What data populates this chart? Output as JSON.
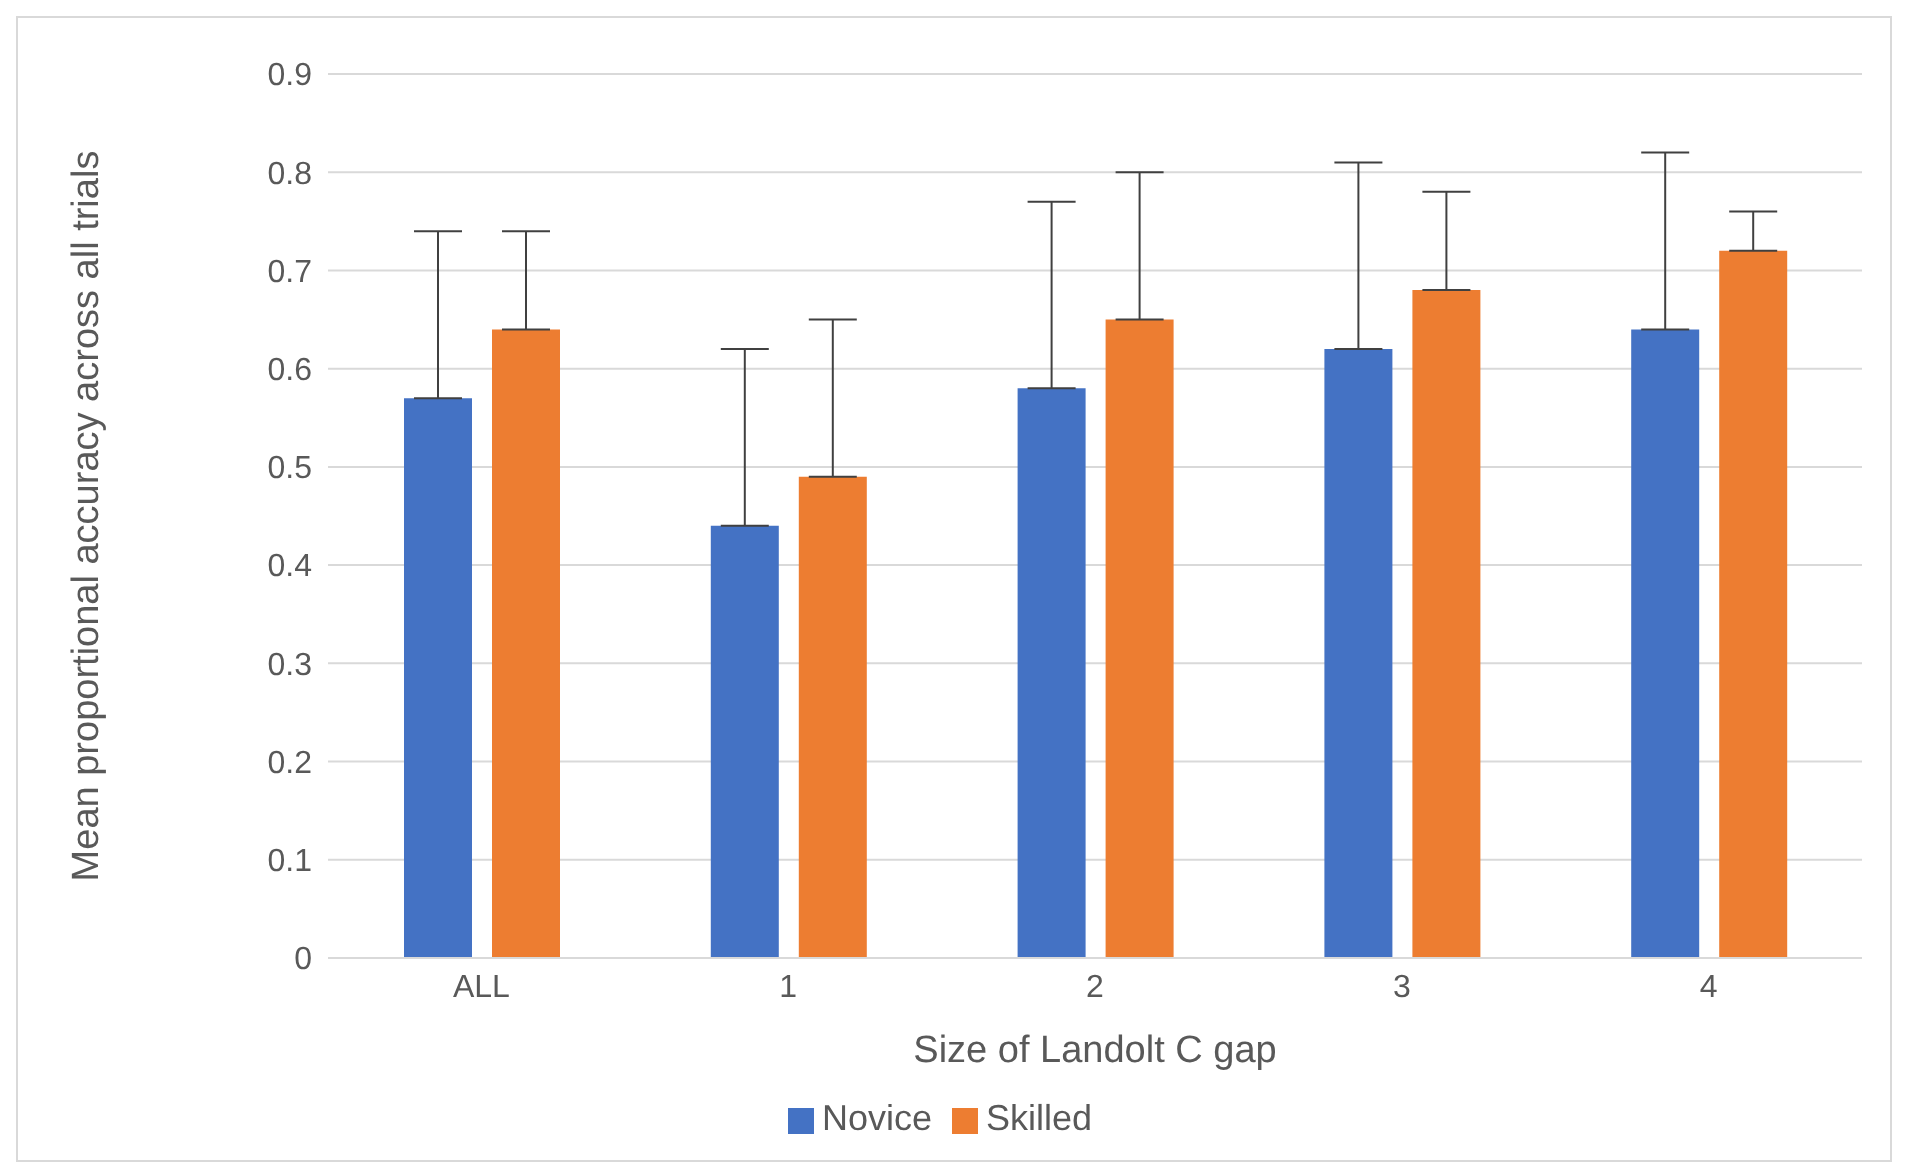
{
  "chart_data": {
    "type": "bar",
    "xlabel": "Size of Landolt C gap",
    "ylabel": "Mean proportional accuracy across all trials",
    "categories": [
      "ALL",
      "1",
      "2",
      "3",
      "4"
    ],
    "series": [
      {
        "name": "Novice",
        "color": "#4472c4",
        "values": [
          0.57,
          0.44,
          0.58,
          0.62,
          0.64
        ],
        "errors": [
          [
            0.57,
            0.74
          ],
          [
            0.44,
            0.62
          ],
          [
            0.58,
            0.77
          ],
          [
            0.62,
            0.81
          ],
          [
            0.64,
            0.82
          ]
        ]
      },
      {
        "name": "Skilled",
        "color": "#ed7d31",
        "values": [
          0.64,
          0.49,
          0.65,
          0.68,
          0.72
        ],
        "errors": [
          [
            0.64,
            0.74
          ],
          [
            0.49,
            0.65
          ],
          [
            0.65,
            0.8
          ],
          [
            0.68,
            0.78
          ],
          [
            0.72,
            0.76
          ]
        ]
      }
    ],
    "ylim": [
      0,
      0.9
    ],
    "yticks": [
      0,
      0.1,
      0.2,
      0.3,
      0.4,
      0.5,
      0.6,
      0.7,
      0.8,
      0.9
    ],
    "grid": "y",
    "legend": "bottom"
  }
}
